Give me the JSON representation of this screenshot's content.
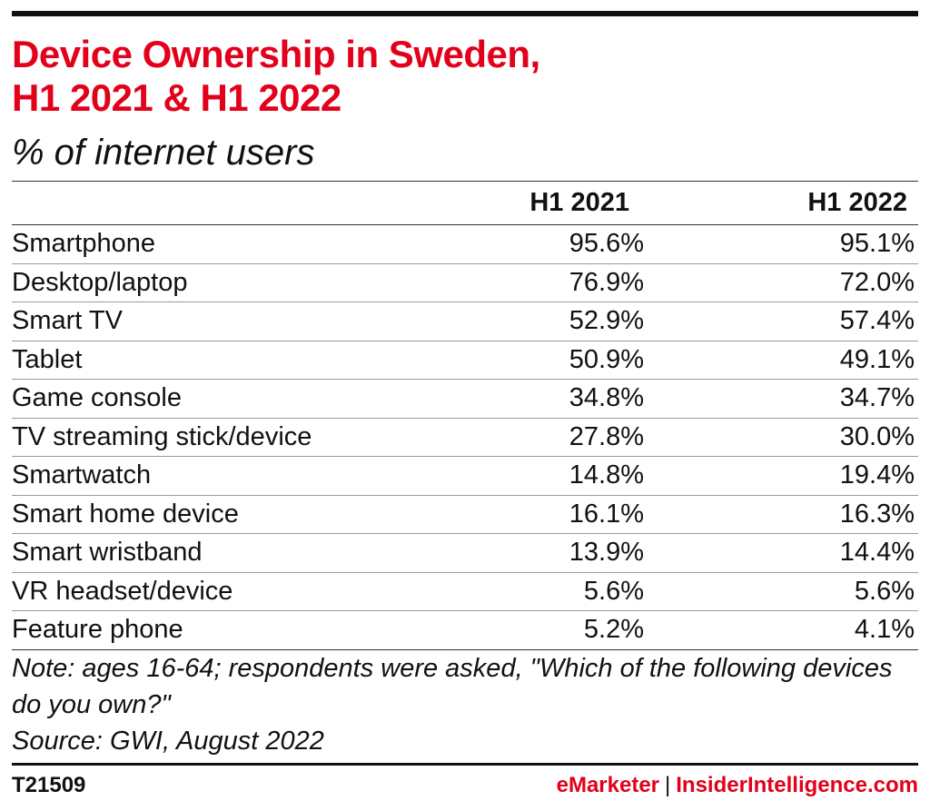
{
  "chart_data": {
    "type": "table",
    "title_line1": "Device Ownership in Sweden,",
    "title_line2": "H1 2021 & H1 2022",
    "subtitle": "% of internet users",
    "columns": [
      "",
      "H1 2021",
      "H1 2022"
    ],
    "rows": [
      {
        "label": "Smartphone",
        "values": [
          "95.6%",
          "95.1%"
        ]
      },
      {
        "label": "Desktop/laptop",
        "values": [
          "76.9%",
          "72.0%"
        ]
      },
      {
        "label": "Smart TV",
        "values": [
          "52.9%",
          "57.4%"
        ]
      },
      {
        "label": "Tablet",
        "values": [
          "50.9%",
          "49.1%"
        ]
      },
      {
        "label": "Game console",
        "values": [
          "34.8%",
          "34.7%"
        ]
      },
      {
        "label": "TV streaming stick/device",
        "values": [
          "27.8%",
          "30.0%"
        ]
      },
      {
        "label": "Smartwatch",
        "values": [
          "14.8%",
          "19.4%"
        ]
      },
      {
        "label": "Smart home device",
        "values": [
          "16.1%",
          "16.3%"
        ]
      },
      {
        "label": "Smart wristband",
        "values": [
          "13.9%",
          "14.4%"
        ]
      },
      {
        "label": "VR headset/device",
        "values": [
          "5.6%",
          "5.6%"
        ]
      },
      {
        "label": "Feature phone",
        "values": [
          "5.2%",
          "4.1%"
        ]
      }
    ],
    "series": [
      {
        "name": "H1 2021",
        "values": [
          95.6,
          76.9,
          52.9,
          50.9,
          34.8,
          27.8,
          14.8,
          16.1,
          13.9,
          5.6,
          5.2
        ]
      },
      {
        "name": "H1 2022",
        "values": [
          95.1,
          72.0,
          57.4,
          49.1,
          34.7,
          30.0,
          19.4,
          16.3,
          14.4,
          5.6,
          4.1
        ]
      }
    ]
  },
  "notes": {
    "note": "Note: ages 16-64; respondents were asked, \"Which of the following devices do you own?\"",
    "source": "Source: GWI, August 2022"
  },
  "footer": {
    "id": "T21509",
    "brand_emarketer": "eMarketer",
    "brand_separator": "|",
    "brand_insider": "InsiderIntelligence.com"
  },
  "colors": {
    "title": "#e2001a",
    "text": "#111111",
    "brand": "#e2001a"
  }
}
